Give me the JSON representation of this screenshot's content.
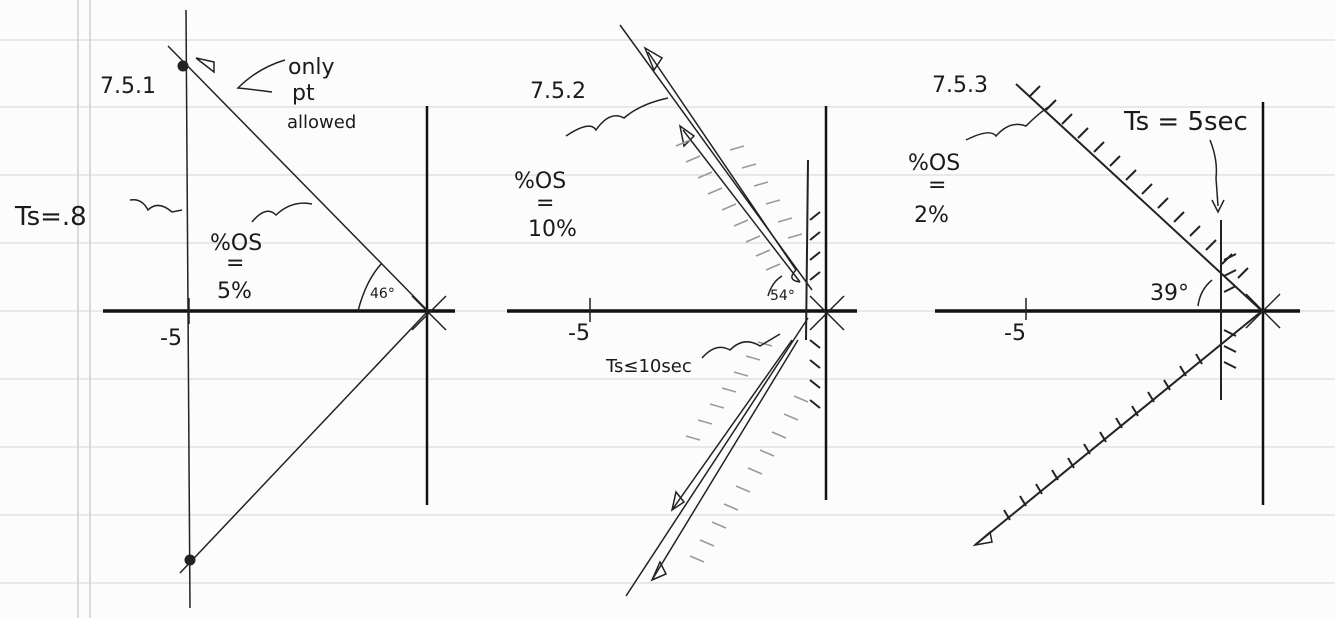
{
  "diagrams": [
    {
      "label": "7.5.1",
      "note_line1": "only",
      "note_line2": "pt",
      "note_line3": "allowed",
      "ts_label": "Ts=.8",
      "os_line1": "%OS",
      "os_line2": "=",
      "os_line3": "5%",
      "angle": "46°",
      "tick": "-5"
    },
    {
      "label": "7.5.2",
      "os_line1": "%OS",
      "os_line2": "=",
      "os_line3": "10%",
      "angle": "54°",
      "tick": "-5",
      "ts_label": "Ts≤10sec"
    },
    {
      "label": "7.5.3",
      "ts_label": "Ts = 5sec",
      "os_line1": "%OS",
      "os_line2": "=",
      "os_line3": "2%",
      "angle": "39°",
      "tick": "-5"
    }
  ],
  "colors": {
    "ink": "#1a1a1a",
    "pencil": "#9a9a9a",
    "paper_rule": "#d4d4d4"
  }
}
